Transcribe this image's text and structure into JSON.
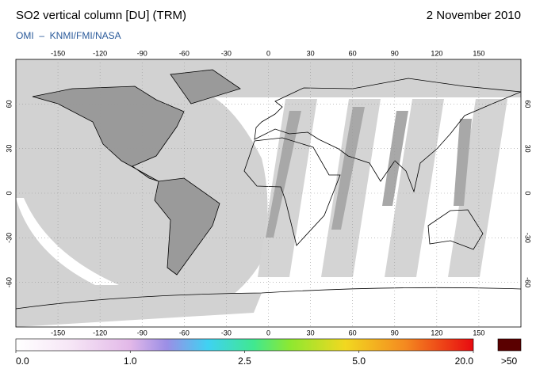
{
  "header": {
    "title": "SO2 vertical column [DU] (TRM)",
    "date": "2 November 2010",
    "subtitle": "OMI  –  KNMI/FMI/NASA"
  },
  "map": {
    "lon_ticks": [
      -150,
      -120,
      -90,
      -60,
      -30,
      0,
      30,
      60,
      90,
      120,
      150
    ],
    "lat_ticks": [
      60,
      30,
      0,
      -30,
      -60
    ]
  },
  "colorbar": {
    "ticks": [
      {
        "value": 0,
        "label": "0.0"
      },
      {
        "value": 1,
        "label": "1.0"
      },
      {
        "value": 2.5,
        "label": "2.5"
      },
      {
        "value": 5,
        "label": "5.0"
      },
      {
        "value": 20,
        "label": "20.0"
      }
    ],
    "overflow_label": ">50"
  }
}
